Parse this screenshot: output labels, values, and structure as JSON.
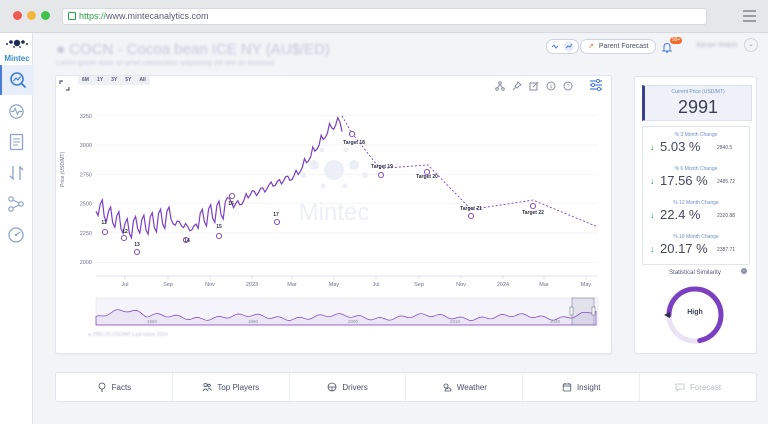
{
  "browser": {
    "url_scheme": "https://",
    "url_host": "www.mintecanalytics.com"
  },
  "logo": {
    "text": "Mintec"
  },
  "sidebar": {
    "items": [
      {
        "icon": "search-chart-icon",
        "active": true
      },
      {
        "icon": "pulse-icon",
        "active": false
      },
      {
        "icon": "report-icon",
        "active": false
      },
      {
        "icon": "swap-icon",
        "active": false
      },
      {
        "icon": "network-icon",
        "active": false
      },
      {
        "icon": "gauge-icon",
        "active": false
      }
    ]
  },
  "header": {
    "parent_forecast_label": "Parent Forecast",
    "notification_count": "99+"
  },
  "range_buttons": [
    "6M",
    "1Y",
    "3Y",
    "5Y",
    "All"
  ],
  "chart": {
    "ylabel": "Price (USD/MT)",
    "watermark": "Mintec",
    "yticks": [
      "3250",
      "3000",
      "2750",
      "2500",
      "2250",
      "2000"
    ],
    "xticks": [
      "Jul",
      "Sep",
      "Nov",
      "2023",
      "Mar",
      "May",
      "Jul",
      "Sep",
      "Nov",
      "2024",
      "Mar",
      "May"
    ],
    "nav_ticks": [
      "1980",
      "1990",
      "2000",
      "2010",
      "2020"
    ],
    "event_markers": [
      "11",
      "12",
      "13",
      "14",
      "15",
      "16",
      "17"
    ],
    "targets": [
      "Target 18",
      "Target 19",
      "Target 20",
      "Target 21",
      "Target 22"
    ]
  },
  "chart_data": {
    "type": "line",
    "ylim": [
      1950,
      3300
    ],
    "series": [
      {
        "values_hist": [
          2450,
          2480,
          2400,
          2420,
          2350,
          2380,
          2300,
          2320,
          2260,
          2340,
          2300,
          2350,
          2290,
          2370,
          2310,
          2400,
          2340,
          2420,
          2380,
          2300,
          2360,
          2280,
          2320,
          2260,
          2340,
          2400,
          2360,
          2440,
          2390,
          2470,
          2420,
          2500,
          2560,
          2450,
          2540,
          2480,
          2600,
          2560,
          2620,
          2580,
          2650,
          2610,
          2700,
          2640,
          2720,
          2680,
          2750,
          2690,
          2800,
          2760,
          2900,
          2850,
          3000,
          2950,
          3100,
          3050,
          3200,
          3120,
          3250,
          3100
        ]
      },
      {
        "values_forecast": [
          3250,
          3100,
          2800,
          2830,
          2830,
          2450,
          2530,
          2300
        ]
      }
    ]
  },
  "current_price": {
    "label": "Current Price (USD/MT)",
    "value": "2991"
  },
  "changes": [
    {
      "label": "% 3 Month Change",
      "value": "5.03 %",
      "ref": "2840.5"
    },
    {
      "label": "% 6 Month Change",
      "value": "17.56 %",
      "ref": "2485.72"
    },
    {
      "label": "% 12 Month Change",
      "value": "22.4 %",
      "ref": "2320.88"
    },
    {
      "label": "% 18 Month Change",
      "value": "20.17 %",
      "ref": "2387.71"
    }
  ],
  "similarity": {
    "title": "Statistical Similarity",
    "level": "High",
    "fraction": 0.72
  },
  "tabs": [
    {
      "label": "Facts",
      "icon": "bulb-icon"
    },
    {
      "label": "Top Players",
      "icon": "users-icon"
    },
    {
      "label": "Drivers",
      "icon": "steering-icon"
    },
    {
      "label": "Weather",
      "icon": "sun-cloud-icon"
    },
    {
      "label": "Insight",
      "icon": "calendar-icon"
    },
    {
      "label": "Forecast",
      "icon": "chat-icon"
    }
  ],
  "colors": {
    "line": "#7b3fc2",
    "accent": "#4b7bd9",
    "up": "#31a65a"
  }
}
